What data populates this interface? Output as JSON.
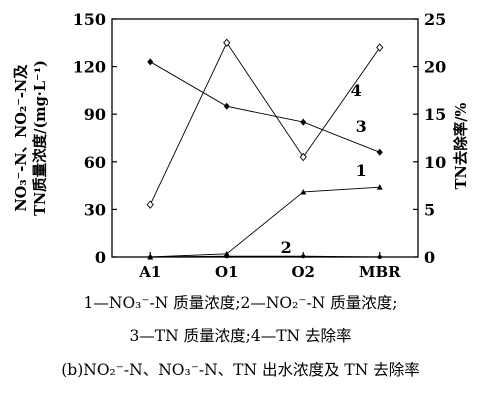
{
  "chart_data": {
    "type": "line",
    "categories": [
      "A1",
      "O1",
      "O2",
      "MBR"
    ],
    "left_axis": {
      "label_line1": "NO₃⁻-N、NO₂⁻-N及",
      "label_line2": "TN质量浓度/(mg·L⁻¹)",
      "ylim": [
        0,
        150
      ],
      "ticks": [
        "0",
        "30",
        "60",
        "90",
        "120",
        "150"
      ]
    },
    "right_axis": {
      "label": "TN去除率/%",
      "ylim": [
        0,
        25
      ],
      "ticks": [
        "0",
        "5",
        "10",
        "15",
        "20",
        "25"
      ]
    },
    "series": [
      {
        "label": "1",
        "axis": "left",
        "marker": "triangle",
        "values": [
          0,
          2,
          41,
          44
        ]
      },
      {
        "label": "2",
        "axis": "left",
        "marker": "circle",
        "values": [
          0,
          0.5,
          0.5,
          0
        ]
      },
      {
        "label": "3",
        "axis": "left",
        "marker": "diamond-filled",
        "values": [
          123,
          95,
          85,
          66
        ]
      },
      {
        "label": "4",
        "axis": "right",
        "marker": "diamond-open",
        "values": [
          5.5,
          22.5,
          10.5,
          22
        ]
      }
    ]
  },
  "legend_lines": [
    "1—NO₃⁻-N 质量浓度;2—NO₂⁻-N 质量浓度;",
    "3—TN 质量浓度;4—TN 去除率"
  ],
  "figure_caption": "(b)NO₂⁻-N、NO₃⁻-N、TN 出水浓度及 TN 去除率"
}
